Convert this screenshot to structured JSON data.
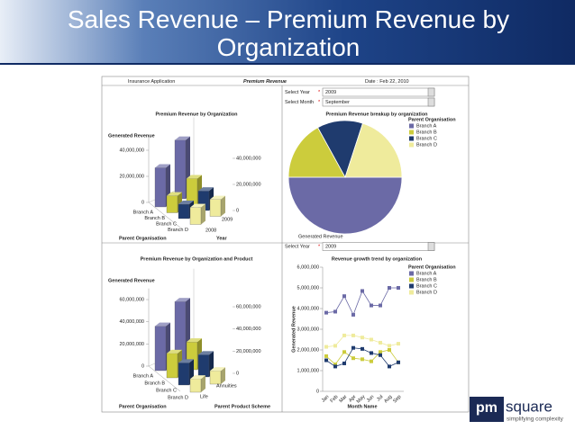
{
  "slide_title": "Sales Revenue – Premium Revenue by Organization",
  "dashboard": {
    "application": "Insurance Application",
    "report": "Premium Revenue",
    "date": "Date : Feb 22, 2010"
  },
  "logo": {
    "mark": "pm",
    "name": "square",
    "tagline": "simplifying complexity"
  },
  "chart_data": [
    {
      "type": "bar3d",
      "title": "Premium Revenue by Organization",
      "ylabel": "Generated Revenue",
      "xlabel": "Parent Organisation",
      "zlabel": "Year",
      "categories": [
        "Branch A",
        "Branch B",
        "Branch C",
        "Branch D"
      ],
      "category_colors": [
        "#6b6aa6",
        "#cccc3c",
        "#1f3b6e",
        "#efeb9c"
      ],
      "series": [
        {
          "name": "2008",
          "values": [
            30000000,
            13000000,
            11000000,
            13000000
          ]
        },
        {
          "name": "2009",
          "values": [
            45000000,
            20000000,
            15000000,
            13000000
          ]
        }
      ],
      "ylim": [
        0,
        50000000
      ],
      "yticks": [
        0,
        {
          "value": 20000000,
          "label": "20,000,000"
        },
        {
          "value": 40000000,
          "label": "40,000,000"
        }
      ]
    },
    {
      "type": "pie",
      "title": "Premium Revenue breakup by organization",
      "legend_title": "Parent Organisation",
      "label": "Generated Revenue",
      "controls": [
        {
          "label": "Select Year",
          "marker": "*",
          "value": "2009"
        },
        {
          "label": "Select Month",
          "marker": "*",
          "value": "September"
        }
      ],
      "categories": [
        "Branch A",
        "Branch B",
        "Branch C",
        "Branch D"
      ],
      "values": [
        50,
        17,
        13,
        20
      ],
      "colors": [
        "#6b6aa6",
        "#cccc3c",
        "#1f3b6e",
        "#efeb9c"
      ]
    },
    {
      "type": "bar3d",
      "title": "Premium Revenue by Organization and Product",
      "ylabel": "Generated Revenue",
      "xlabel": "Parent Organisation",
      "zlabel": "Parent Product Scheme",
      "categories": [
        "Branch A",
        "Branch B",
        "Branch C",
        "Branch D"
      ],
      "category_colors": [
        "#6b6aa6",
        "#cccc3c",
        "#1f3b6e",
        "#efeb9c"
      ],
      "series": [
        {
          "name": "Life",
          "values": [
            40000000,
            22000000,
            20000000,
            12000000
          ]
        },
        {
          "name": "Annuities",
          "values": [
            55000000,
            25000000,
            20000000,
            12000000
          ]
        }
      ],
      "ylim": [
        0,
        70000000
      ],
      "yticks": [
        0,
        {
          "value": 20000000,
          "label": "20,000,000"
        },
        {
          "value": 40000000,
          "label": "40,000,000"
        },
        {
          "value": 60000000,
          "label": "60,000,000"
        }
      ]
    },
    {
      "type": "line",
      "title": "Revenue growth trend by organization",
      "ylabel": "Generated Revenue",
      "xlabel": "Month Name",
      "legend_title": "Parent Organisation",
      "controls": [
        {
          "label": "Select Year",
          "marker": "*",
          "value": "2009"
        }
      ],
      "categories": [
        "Jan",
        "Feb",
        "Mar",
        "Apr",
        "May",
        "Jun",
        "Jul",
        "Aug",
        "Sep"
      ],
      "series": [
        {
          "name": "Branch A",
          "color": "#6b6aa6",
          "values": [
            3800000,
            3850000,
            4600000,
            3700000,
            4850000,
            4150000,
            4150000,
            5000000,
            5000000
          ]
        },
        {
          "name": "Branch B",
          "color": "#cccc3c",
          "values": [
            1700000,
            1300000,
            1900000,
            1600000,
            1550000,
            1450000,
            1900000,
            2000000,
            1400000
          ]
        },
        {
          "name": "Branch C",
          "color": "#1f3b6e",
          "values": [
            1500000,
            1200000,
            1350000,
            2100000,
            2050000,
            1850000,
            1750000,
            1200000,
            1400000
          ]
        },
        {
          "name": "Branch D",
          "color": "#efeb9c",
          "values": [
            2150000,
            2200000,
            2700000,
            2700000,
            2600000,
            2500000,
            2350000,
            2200000,
            2300000
          ]
        }
      ],
      "ylim": [
        0,
        6000000
      ],
      "yticks": [
        0,
        {
          "value": 1000000,
          "label": "1,000,000"
        },
        {
          "value": 2000000,
          "label": "2,000,000"
        },
        {
          "value": 3000000,
          "label": "3,000,000"
        },
        {
          "value": 4000000,
          "label": "4,000,000"
        },
        {
          "value": 5000000,
          "label": "5,000,000"
        },
        {
          "value": 6000000,
          "label": "6,000,000"
        }
      ]
    }
  ]
}
